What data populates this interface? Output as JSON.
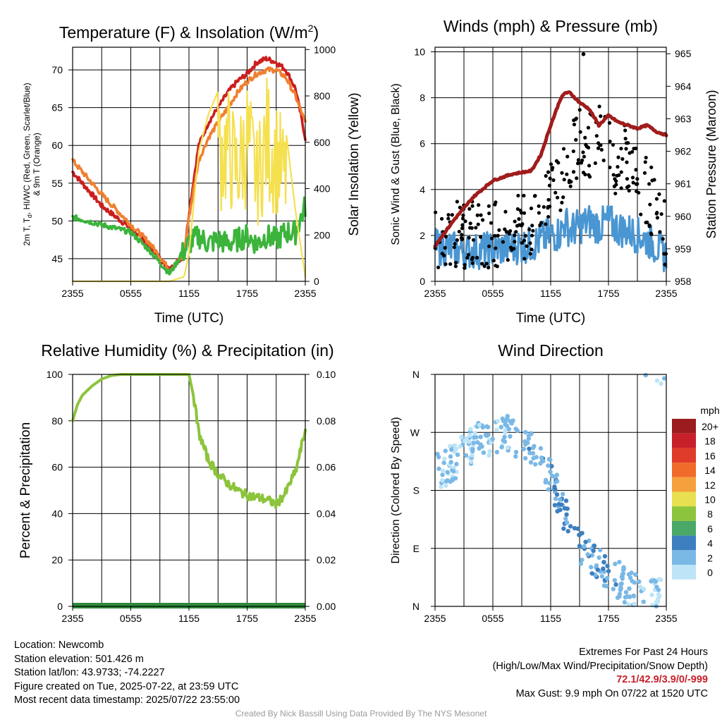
{
  "chart_data": [
    {
      "type": "line",
      "title": "Temperature (F) & Insolation (W/m²)",
      "xlabel": "Time (UTC)",
      "ylabel_left": "2m T, Td, HI/WC (Red, Green, Scarlet/Blue) & 9m T (Orange)",
      "ylabel_right": "Solar Insolation (Yellow)",
      "x_ticks": [
        "2355",
        "0555",
        "1155",
        "1755",
        "2355"
      ],
      "y_ticks_left": [
        45,
        50,
        55,
        60,
        65,
        70
      ],
      "y_ticks_right": [
        0,
        200,
        400,
        600,
        800,
        1000
      ],
      "ylim_left": [
        42,
        73
      ],
      "ylim_right": [
        0,
        1010
      ],
      "x_hours": [
        0,
        3,
        6,
        8,
        10,
        11.5,
        12,
        13,
        14,
        15,
        16,
        17,
        18,
        19,
        20,
        21,
        22,
        23,
        24
      ],
      "series": [
        {
          "name": "2m T",
          "color": "#cc1e1e",
          "axis": "left",
          "values": [
            56.5,
            52,
            49,
            46.5,
            43.5,
            45.5,
            51,
            60,
            63,
            65,
            67,
            68.5,
            69.5,
            71,
            71.5,
            71,
            70,
            67.5,
            61
          ]
        },
        {
          "name": "9m T",
          "color": "#f08030",
          "axis": "left",
          "values": [
            58,
            53.5,
            49.5,
            47,
            43.5,
            45.5,
            50.5,
            58,
            61,
            63,
            65,
            67,
            68.5,
            69.5,
            70,
            70,
            69,
            66.5,
            63
          ]
        },
        {
          "name": "Td",
          "color": "#3cb43c",
          "axis": "left",
          "values": [
            50.5,
            49.5,
            48.5,
            46,
            43,
            46,
            47,
            48,
            47,
            47.5,
            47,
            47.5,
            48,
            47,
            48,
            47.5,
            48.5,
            48.5,
            52
          ]
        },
        {
          "name": "Solar Insolation",
          "color": "#f5e050",
          "axis": "right",
          "values": [
            0,
            0,
            0,
            0,
            0,
            20,
            120,
            560,
            720,
            820,
            850,
            700,
            900,
            650,
            900,
            800,
            650,
            300,
            20
          ]
        }
      ]
    },
    {
      "type": "scatter",
      "title": "Winds (mph) & Pressure (mb)",
      "xlabel": "Time (UTC)",
      "ylabel_left": "Sonic Wind & Gust (Blue, Black)",
      "ylabel_right": "Station Pressure (Maroon)",
      "x_ticks": [
        "2355",
        "0555",
        "1155",
        "1755",
        "2355"
      ],
      "y_ticks_left": [
        0,
        2,
        4,
        6,
        8,
        10
      ],
      "y_ticks_right": [
        958,
        959,
        960,
        961,
        962,
        963,
        964,
        965
      ],
      "ylim_left": [
        0,
        10.2
      ],
      "ylim_right": [
        958,
        965.2
      ],
      "x_hours": [
        0,
        2,
        4,
        6,
        8,
        10,
        11,
        12,
        13,
        13.5,
        14,
        15,
        16,
        17,
        18,
        19,
        20,
        21,
        22,
        23,
        24
      ],
      "series": [
        {
          "name": "Station Pressure",
          "color": "#a01c1c",
          "axis": "right",
          "values": [
            959.1,
            959.9,
            960.6,
            961.1,
            961.3,
            961.4,
            961.9,
            962.8,
            963.6,
            963.8,
            963.8,
            963.5,
            963.3,
            962.8,
            963.1,
            962.9,
            962.8,
            962.7,
            962.8,
            962.6,
            962.5
          ]
        },
        {
          "name": "Sonic Wind",
          "color": "#4a96d2",
          "axis": "left",
          "values": [
            1.5,
            1.4,
            1.3,
            1.4,
            1.5,
            1.6,
            1.8,
            2.0,
            2.1,
            2.6,
            2.2,
            2.4,
            2.6,
            2.4,
            2.6,
            2.3,
            2.2,
            2.0,
            1.8,
            1.5,
            1.1
          ]
        },
        {
          "name": "Gust",
          "color": "#000000",
          "axis": "left",
          "values": [
            2.0,
            2.1,
            2.0,
            2.1,
            2.3,
            2.5,
            3.5,
            4.0,
            4.5,
            5.0,
            5.5,
            6.0,
            5.8,
            6.2,
            5.5,
            5.0,
            5.5,
            4.5,
            4.0,
            3.0,
            2.0
          ]
        }
      ],
      "max_gust": 9.9
    },
    {
      "type": "line",
      "title": "Relative Humidity (%) & Precipitation (in)",
      "ylabel_left": "Percent & Precipitation",
      "x_ticks": [
        "2355",
        "0555",
        "1155",
        "1755",
        "2355"
      ],
      "y_ticks_left": [
        0,
        20,
        40,
        60,
        80,
        100
      ],
      "y_ticks_right": [
        "0.00",
        "0.02",
        "0.04",
        "0.06",
        "0.08",
        "0.10"
      ],
      "ylim_left": [
        0,
        100
      ],
      "ylim_right": [
        0,
        0.1
      ],
      "x_hours": [
        0,
        0.5,
        1,
        2,
        3,
        4,
        5,
        8,
        10,
        11,
        12,
        12.5,
        13,
        14,
        15,
        16,
        17,
        18,
        19,
        20,
        21,
        22,
        22.5,
        23,
        24
      ],
      "series": [
        {
          "name": "Relative Humidity",
          "color": "#8cc43c",
          "axis": "left",
          "values": [
            80,
            87,
            91,
            95,
            98,
            99.5,
            100,
            100,
            100,
            100,
            100,
            90,
            75,
            63,
            57,
            53,
            50,
            48,
            47,
            46,
            44,
            49,
            54,
            58,
            76
          ]
        },
        {
          "name": "Precipitation",
          "color": "#2e8b3c",
          "axis": "right",
          "values": [
            0,
            0,
            0,
            0,
            0,
            0,
            0,
            0,
            0,
            0,
            0,
            0,
            0,
            0,
            0,
            0,
            0,
            0,
            0,
            0,
            0,
            0,
            0,
            0,
            0
          ]
        }
      ]
    },
    {
      "type": "scatter",
      "title": "Wind Direction",
      "ylabel": "Direction (Colored By Speed)",
      "x_ticks": [
        "2355",
        "0555",
        "1155",
        "1755",
        "2355"
      ],
      "y_ticks": [
        "N",
        "E",
        "S",
        "W",
        "N"
      ],
      "ylim": [
        0,
        360
      ],
      "legend": {
        "title": "mph",
        "labels": [
          "20+",
          "18",
          "16",
          "14",
          "12",
          "10",
          "8",
          "6",
          "4",
          "2",
          "0"
        ],
        "colors": [
          "#9b1b1e",
          "#c8202a",
          "#e03a2a",
          "#f06a2a",
          "#f5a03c",
          "#e8e050",
          "#8cc43c",
          "#4aa867",
          "#3d7fbe",
          "#7ab8e6",
          "#bde4f7"
        ]
      },
      "x_hours": [
        0.5,
        2,
        3,
        4,
        5,
        6,
        7,
        8,
        9,
        10,
        11,
        12,
        13,
        14,
        15,
        16,
        17,
        18,
        19,
        20,
        21,
        22,
        23
      ],
      "direction_deg": [
        210,
        225,
        240,
        255,
        260,
        265,
        270,
        265,
        250,
        240,
        225,
        200,
        160,
        120,
        95,
        75,
        60,
        50,
        40,
        30,
        25,
        20,
        15
      ],
      "speed_mph": [
        1.5,
        1.0,
        1.2,
        1.4,
        1.3,
        1.0,
        1.5,
        2.0,
        2.5,
        2.2,
        2.0,
        2.5,
        3.0,
        3.5,
        3.0,
        2.8,
        2.6,
        2.5,
        2.2,
        2.0,
        1.5,
        1.2,
        1.0
      ]
    }
  ],
  "info": {
    "location": "Location: Newcomb",
    "elevation": "Station elevation: 501.426 m",
    "latlon": "Station lat/lon: 43.9733; -74.2227",
    "created": "Figure created on Tue, 2025-07-22, at 23:59 UTC",
    "recent": "Most recent data timestamp: 2025/07/22 23:55:00"
  },
  "extremes": {
    "title": "Extremes For Past 24 Hours",
    "subtitle": "(High/Low/Max Wind/Precipitation/Snow Depth)",
    "values": "72.1/42.9/3.9/0/-999",
    "max_gust": "Max Gust: 9.9 mph On 07/22 at 1520 UTC"
  },
  "credit": "Created By Nick Bassill Using Data Provided By The NYS Mesonet"
}
